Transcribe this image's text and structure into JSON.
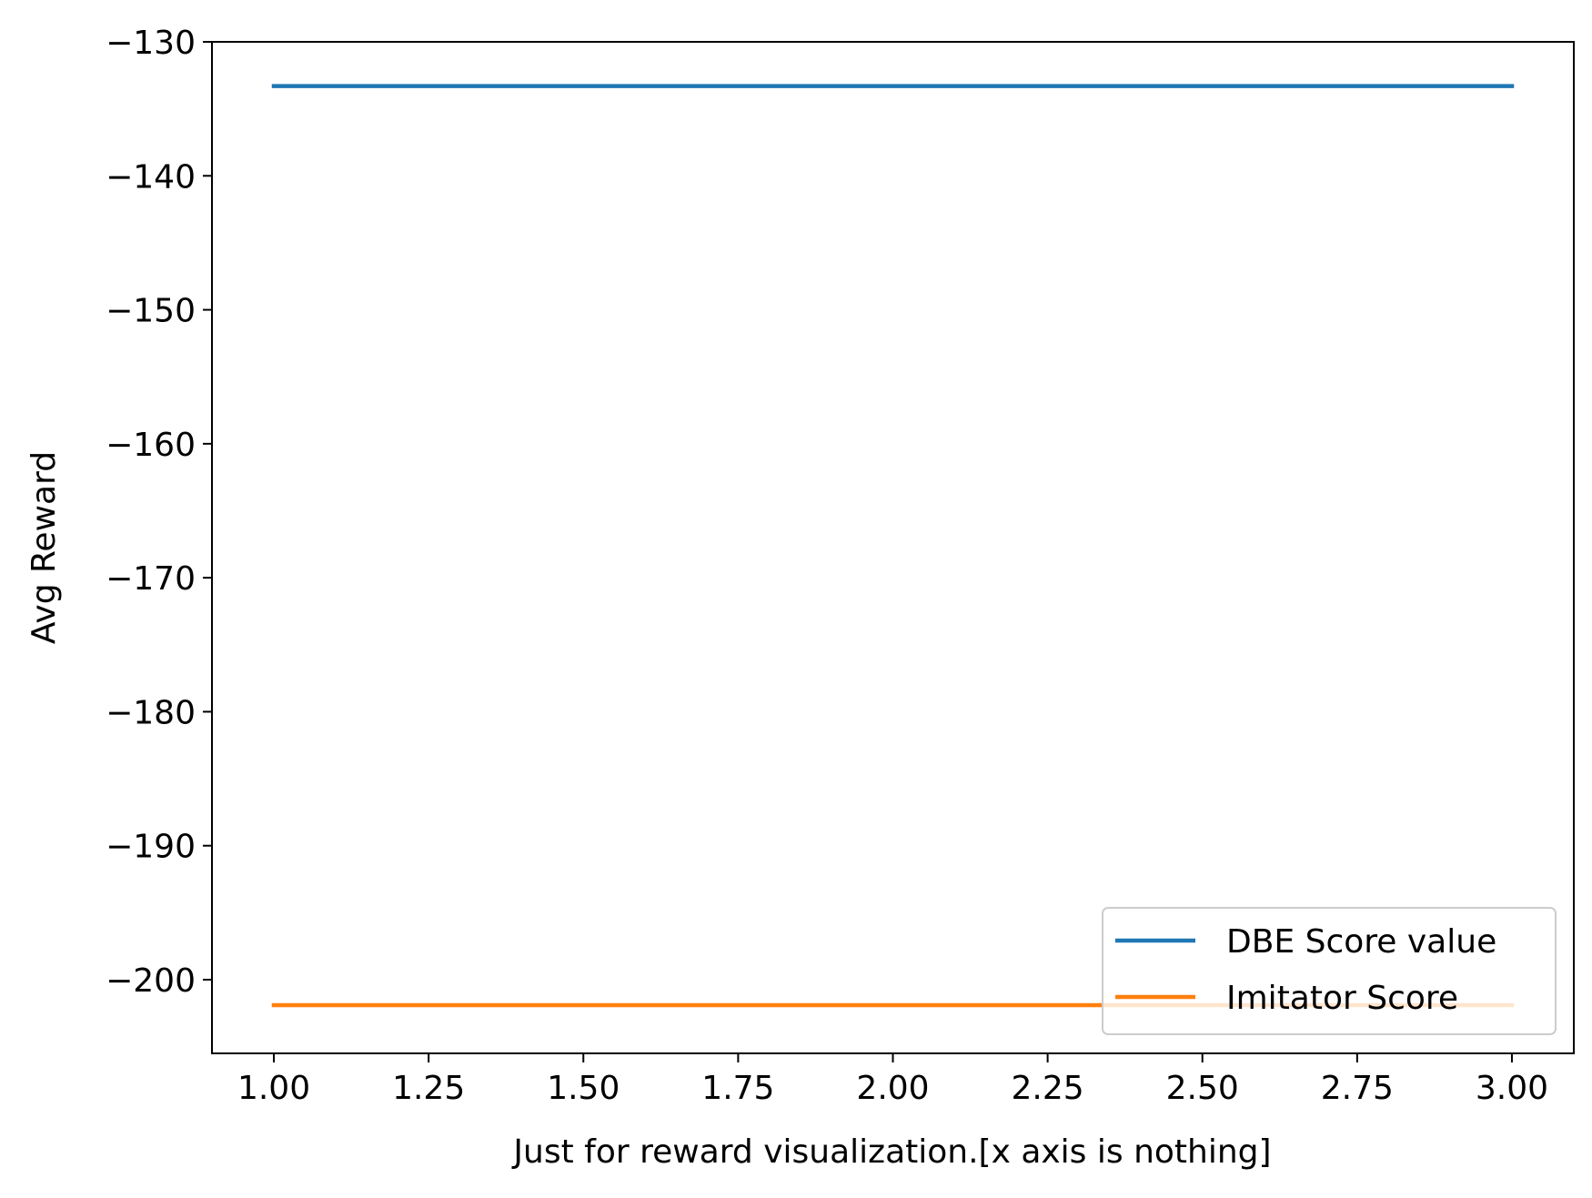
{
  "chart_data": {
    "type": "line",
    "title": "",
    "xlabel": "Just for reward visualization.[x axis is nothing]",
    "ylabel": "Avg Reward",
    "x": [
      1.0,
      2.0,
      3.0
    ],
    "xlim": [
      0.9,
      3.1
    ],
    "ylim": [
      -205.5,
      -130.0
    ],
    "xticks": [
      1.0,
      1.25,
      1.5,
      1.75,
      2.0,
      2.25,
      2.5,
      2.75,
      3.0
    ],
    "xtick_labels": [
      "1.00",
      "1.25",
      "1.50",
      "1.75",
      "2.00",
      "2.25",
      "2.50",
      "2.75",
      "3.00"
    ],
    "yticks": [
      -130,
      -140,
      -150,
      -160,
      -170,
      -180,
      -190,
      -200
    ],
    "ytick_labels": [
      "−130",
      "−140",
      "−150",
      "−160",
      "−170",
      "−180",
      "−190",
      "−200"
    ],
    "grid": false,
    "legend_position": "lower-right",
    "series": [
      {
        "name": "DBE Score value",
        "color": "#1f77b4",
        "values": [
          -133.3,
          -133.3,
          -133.3
        ]
      },
      {
        "name": "Imitator Score",
        "color": "#ff7f0e",
        "values": [
          -201.9,
          -201.9,
          -201.9
        ]
      }
    ]
  }
}
